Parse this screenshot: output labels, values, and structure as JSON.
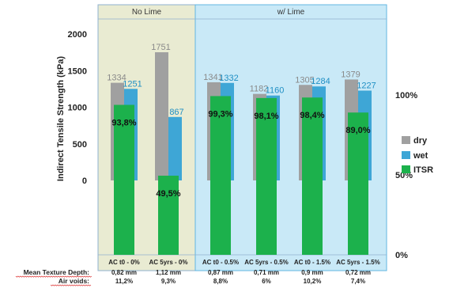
{
  "chart_data": {
    "type": "bar",
    "ylabel": "Indirect Tensile Strength (kPa)",
    "ylim": [
      0,
      2000
    ],
    "yticks": [
      0,
      500,
      1000,
      1500,
      2000
    ],
    "y2lim": [
      0,
      100
    ],
    "y2ticks": [
      "0%",
      "50%",
      "100%"
    ],
    "categories": [
      "AC t0 - 0%",
      "AC 5yrs - 0%",
      "AC t0 - 0.5%",
      "AC 5yrs - 0.5%",
      "AC t0 - 1.5%",
      "AC 5yrs - 1.5%"
    ],
    "groups": [
      {
        "label": "No Lime",
        "categories": [
          0,
          1
        ]
      },
      {
        "label": "w/ Lime",
        "categories": [
          2,
          3,
          4,
          5
        ]
      }
    ],
    "series": [
      {
        "name": "dry",
        "axis": "left",
        "values": [
          1334,
          1751,
          1341,
          1182,
          1305,
          1379
        ],
        "labels": [
          "1334",
          "1751",
          "1341",
          "1182",
          "1305",
          "1379"
        ],
        "color": "#a0a0a0"
      },
      {
        "name": "wet",
        "axis": "left",
        "values": [
          1251,
          867,
          1332,
          1160,
          1284,
          1227
        ],
        "labels": [
          "1251",
          "867",
          "1332",
          "1160",
          "1284",
          "1227"
        ],
        "color": "#3ea6d6"
      },
      {
        "name": "ITSR",
        "axis": "right",
        "values": [
          93.8,
          49.5,
          99.3,
          98.1,
          98.4,
          89.0
        ],
        "labels": [
          "93,8%",
          "49,5%",
          "99,3%",
          "98,1%",
          "98,4%",
          "89,0%"
        ],
        "color": "#1cb14c"
      }
    ],
    "rows": [
      {
        "label": "Mean Texture Depth:",
        "values": [
          "0,82 mm",
          "1,12 mm",
          "0,87 mm",
          "0,71 mm",
          "0,9 mm",
          "0,72 mm"
        ]
      },
      {
        "label": "Air voids:",
        "values": [
          "11,2%",
          "9,3%",
          "8,8%",
          "6%",
          "10,2%",
          "7,4%"
        ]
      }
    ],
    "legend": "right",
    "grid": false
  }
}
